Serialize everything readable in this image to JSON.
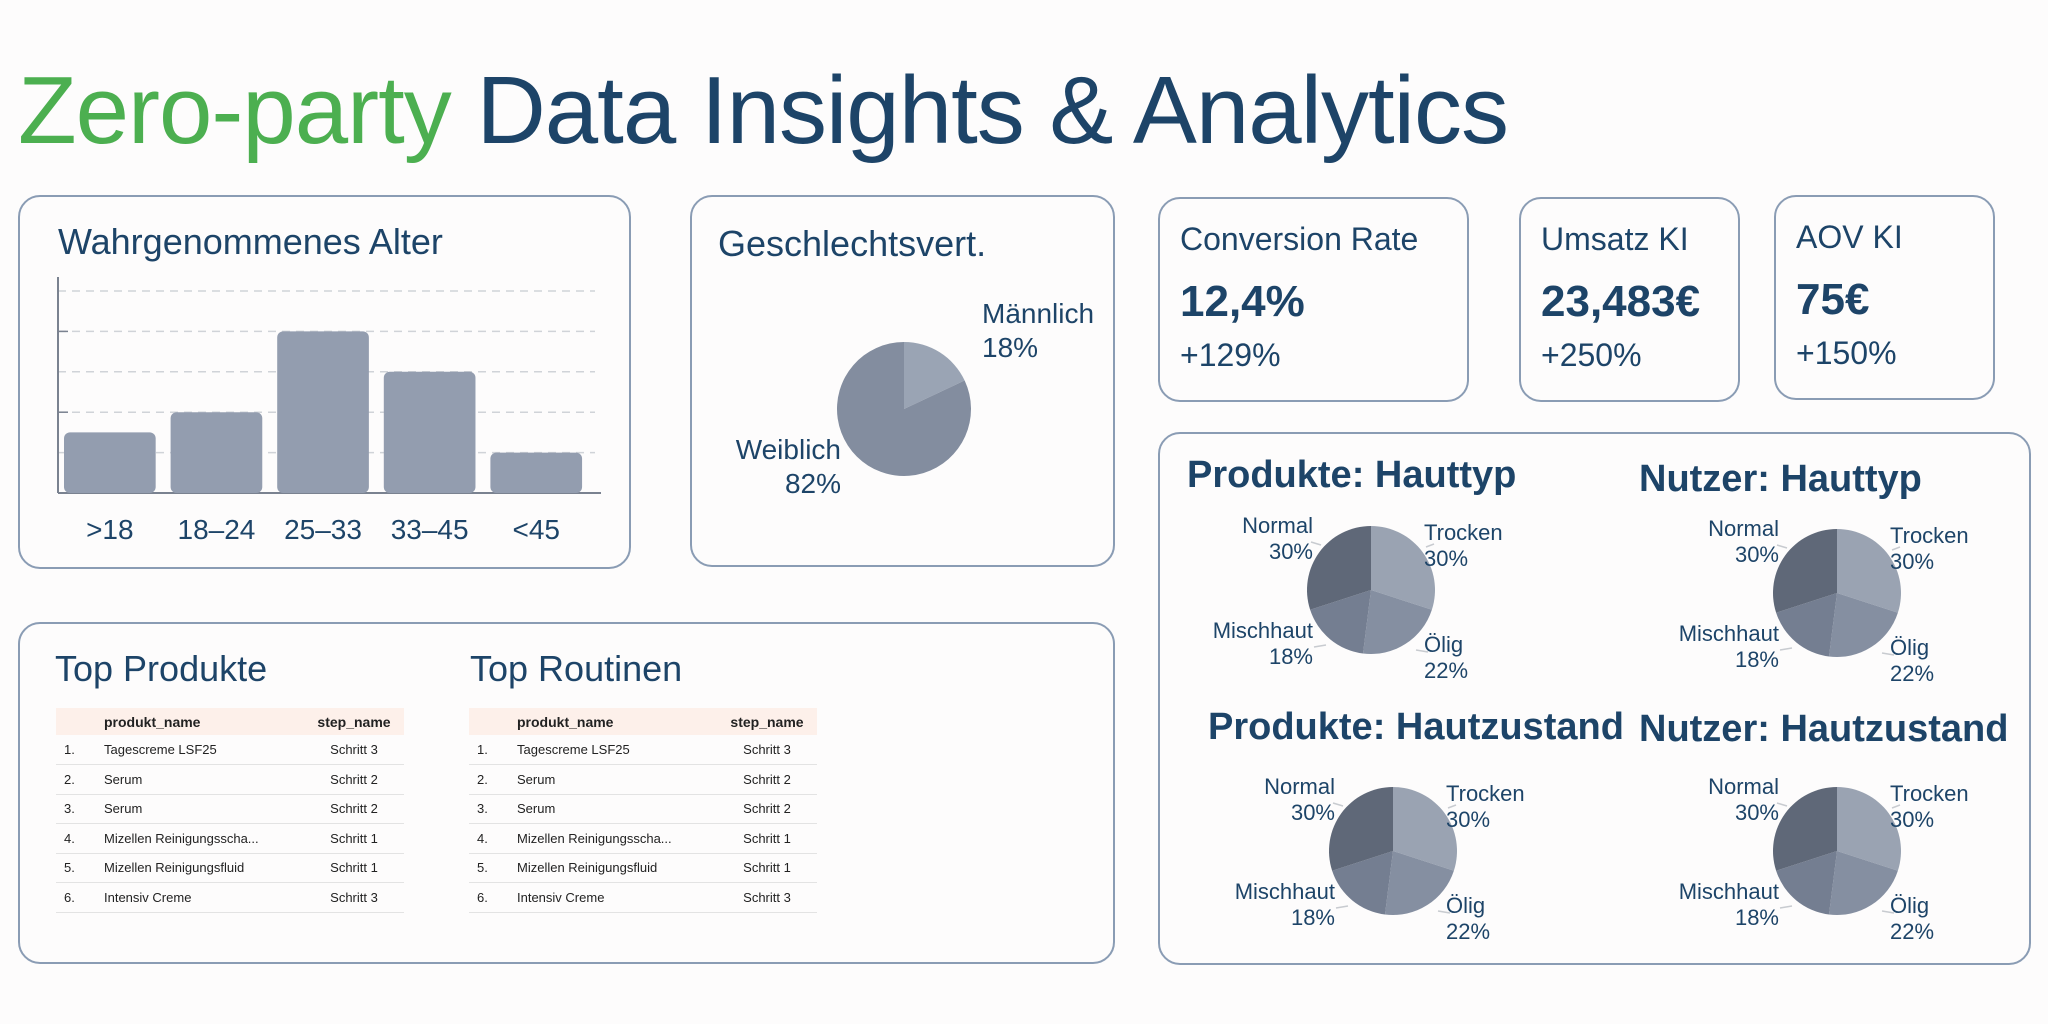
{
  "header": {
    "title_accent": "Zero-party",
    "title_main": "Data Insights & Analytics"
  },
  "age_card": {
    "title": "Wahrgenommenes Alter",
    "chart_data": {
      "type": "bar",
      "categories": [
        ">18",
        "18–24",
        "25–33",
        "33–45",
        "<45"
      ],
      "values": [
        15,
        20,
        40,
        30,
        10
      ],
      "ylim": [
        0,
        50
      ],
      "grid": true,
      "color": "#939daf"
    }
  },
  "gender_card": {
    "title": "Geschlechtsvert.",
    "chart_data": {
      "type": "pie",
      "labels": [
        "Männlich",
        "Weiblich"
      ],
      "values": [
        18,
        82
      ],
      "value_labels": [
        "18%",
        "82%"
      ],
      "colors": [
        "#9aa4b4",
        "#838d9f"
      ]
    }
  },
  "kpis": [
    {
      "label": "Conversion Rate",
      "value": "12,4%",
      "change": "+129%"
    },
    {
      "label": "Umsatz KI",
      "value": "23,483€",
      "change": "+250%"
    },
    {
      "label": "AOV KI",
      "value": "75€",
      "change": "+150%"
    }
  ],
  "skin_pies": [
    {
      "title": "Produkte: Hauttyp",
      "chart_data": {
        "type": "pie",
        "labels": [
          "Trocken",
          "Ölig",
          "Mischhaut",
          "Normal"
        ],
        "values": [
          30,
          22,
          18,
          30
        ],
        "value_labels": [
          "30%",
          "22%",
          "18%",
          "30%"
        ]
      }
    },
    {
      "title": "Nutzer: Hauttyp",
      "chart_data": {
        "type": "pie",
        "labels": [
          "Trocken",
          "Ölig",
          "Mischhaut",
          "Normal"
        ],
        "values": [
          30,
          22,
          18,
          30
        ],
        "value_labels": [
          "30%",
          "22%",
          "18%",
          "30%"
        ]
      }
    },
    {
      "title": "Produkte: Hautzustand",
      "chart_data": {
        "type": "pie",
        "labels": [
          "Trocken",
          "Ölig",
          "Mischhaut",
          "Normal"
        ],
        "values": [
          30,
          22,
          18,
          30
        ],
        "value_labels": [
          "30%",
          "22%",
          "18%",
          "30%"
        ]
      }
    },
    {
      "title": "Nutzer: Hautzustand",
      "chart_data": {
        "type": "pie",
        "labels": [
          "Trocken",
          "Ölig",
          "Mischhaut",
          "Normal"
        ],
        "values": [
          30,
          22,
          18,
          30
        ],
        "value_labels": [
          "30%",
          "22%",
          "18%",
          "30%"
        ]
      }
    }
  ],
  "skin_pie_colors": [
    "#9aa3b2",
    "#858fa1",
    "#747e91",
    "#5f6878"
  ],
  "tables": [
    {
      "title": "Top Produkte",
      "columns": [
        "",
        "produkt_name",
        "step_name"
      ],
      "rows": [
        [
          "1.",
          "Tagescreme LSF25",
          "Schritt 3"
        ],
        [
          "2.",
          "Serum",
          "Schritt 2"
        ],
        [
          "3.",
          "Serum",
          "Schritt 2"
        ],
        [
          "4.",
          "Mizellen Reinigungsscha...",
          "Schritt 1"
        ],
        [
          "5.",
          "Mizellen Reinigungsfluid",
          "Schritt 1"
        ],
        [
          "6.",
          "Intensiv Creme",
          "Schritt 3"
        ]
      ]
    },
    {
      "title": "Top Routinen",
      "columns": [
        "",
        "produkt_name",
        "step_name"
      ],
      "rows": [
        [
          "1.",
          "Tagescreme LSF25",
          "Schritt 3"
        ],
        [
          "2.",
          "Serum",
          "Schritt 2"
        ],
        [
          "3.",
          "Serum",
          "Schritt 2"
        ],
        [
          "4.",
          "Mizellen Reinigungsscha...",
          "Schritt 1"
        ],
        [
          "5.",
          "Mizellen Reinigungsfluid",
          "Schritt 1"
        ],
        [
          "6.",
          "Intensiv Creme",
          "Schritt 3"
        ]
      ]
    }
  ]
}
